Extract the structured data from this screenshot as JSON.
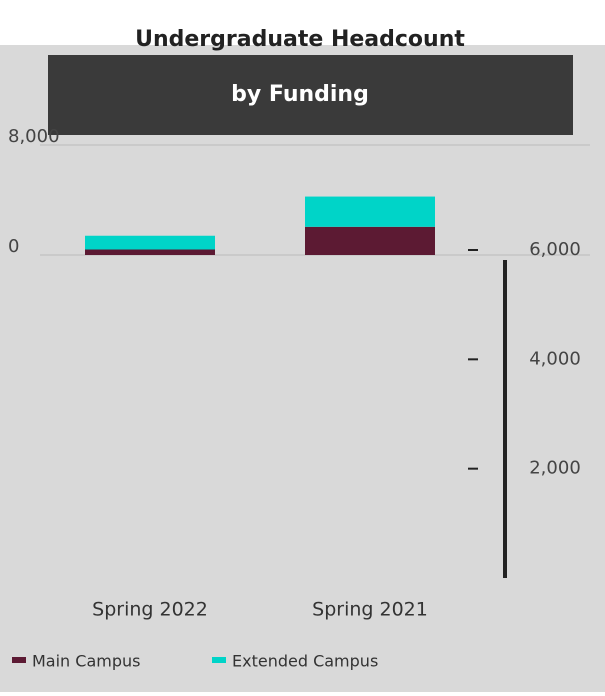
{
  "chart_data": {
    "type": "bar",
    "stacked": true,
    "title": "Undergraduate Headcount",
    "subtitle": "by Funding",
    "categories": [
      "Spring 2022",
      "Spring 2021"
    ],
    "series": [
      {
        "name": "Main Campus",
        "color": "#5c1a33",
        "values": [
          400,
          2050
        ]
      },
      {
        "name": "Extended Campus",
        "color": "#00d4c8",
        "values": [
          1000,
          2200
        ]
      }
    ],
    "ylim": [
      0,
      8000
    ],
    "yticks": [
      0,
      {
        "value": 8000,
        "label": "8,000"
      }
    ],
    "y2lim": [
      0,
      6000
    ],
    "y2ticks": [
      {
        "value": 2000,
        "label": "2,000"
      },
      {
        "value": 4000,
        "label": "4,000"
      },
      {
        "value": 6000,
        "label": "6,000"
      }
    ],
    "grid": true
  }
}
